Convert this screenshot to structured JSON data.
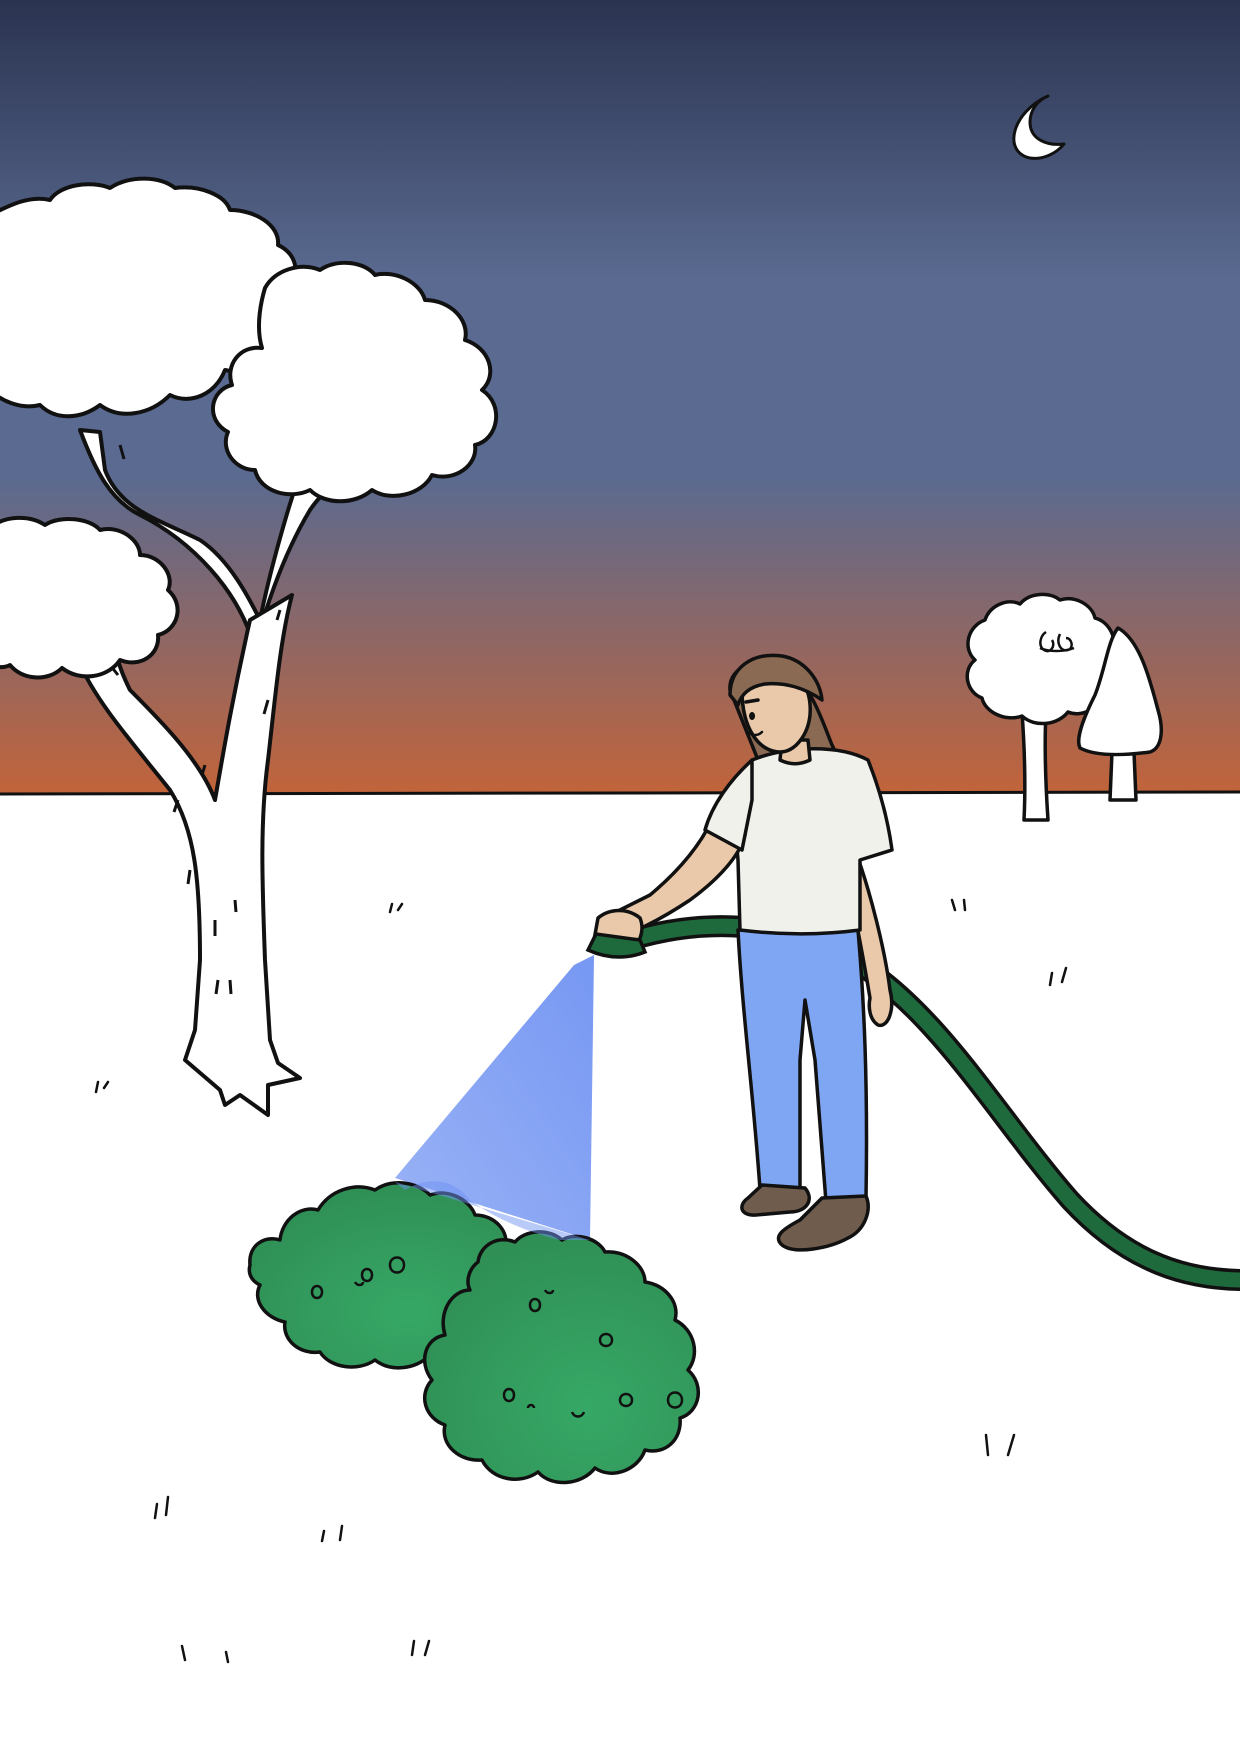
{
  "scene": {
    "time_of_day": "dusk",
    "subjects": [
      "woman-watering-bushes",
      "large-tree",
      "small-tree",
      "ghost",
      "bushes",
      "garden-hose",
      "moon"
    ],
    "colors": {
      "sky_top": "#2a3350",
      "sky_mid": "#5a6a90",
      "sky_horizon": "#c2643a",
      "ground": "#ffffff",
      "outline": "#111111",
      "bush": "#2f8f55",
      "bush_light": "#36a866",
      "hose": "#1f6a3c",
      "water": "#6f92f2",
      "shirt": "#f1f1ec",
      "pants": "#7fa6f2",
      "skin": "#e9c9aa",
      "hair": "#8a6a52",
      "shoes": "#6f5c4c"
    }
  }
}
